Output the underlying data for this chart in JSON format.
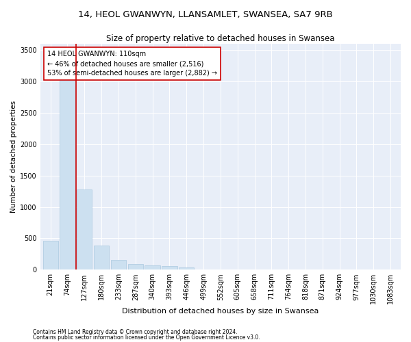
{
  "title1": "14, HEOL GWANWYN, LLANSAMLET, SWANSEA, SA7 9RB",
  "title2": "Size of property relative to detached houses in Swansea",
  "xlabel": "Distribution of detached houses by size in Swansea",
  "ylabel": "Number of detached properties",
  "footnote1": "Contains HM Land Registry data © Crown copyright and database right 2024.",
  "footnote2": "Contains public sector information licensed under the Open Government Licence v3.0.",
  "annotation_line1": "14 HEOL GWANWYN: 110sqm",
  "annotation_line2": "← 46% of detached houses are smaller (2,516)",
  "annotation_line3": "53% of semi-detached houses are larger (2,882) →",
  "bar_color": "#cce0f0",
  "bar_edge_color": "#aac8e0",
  "vline_color": "#cc0000",
  "annotation_box_edgecolor": "#cc0000",
  "background_color": "#e8eef8",
  "categories": [
    "21sqm",
    "74sqm",
    "127sqm",
    "180sqm",
    "233sqm",
    "287sqm",
    "340sqm",
    "393sqm",
    "446sqm",
    "499sqm",
    "552sqm",
    "605sqm",
    "658sqm",
    "711sqm",
    "764sqm",
    "818sqm",
    "871sqm",
    "924sqm",
    "977sqm",
    "1030sqm",
    "1083sqm"
  ],
  "values": [
    460,
    3430,
    1280,
    390,
    155,
    90,
    65,
    55,
    40,
    0,
    0,
    0,
    0,
    0,
    0,
    0,
    0,
    0,
    0,
    0,
    0
  ],
  "ylim": [
    0,
    3600
  ],
  "yticks": [
    0,
    500,
    1000,
    1500,
    2000,
    2500,
    3000,
    3500
  ],
  "vline_x_index": 1.5,
  "title1_fontsize": 9.5,
  "title2_fontsize": 8.5,
  "xlabel_fontsize": 8,
  "ylabel_fontsize": 7.5,
  "tick_fontsize": 7,
  "annotation_fontsize": 7,
  "footnote_fontsize": 5.5
}
